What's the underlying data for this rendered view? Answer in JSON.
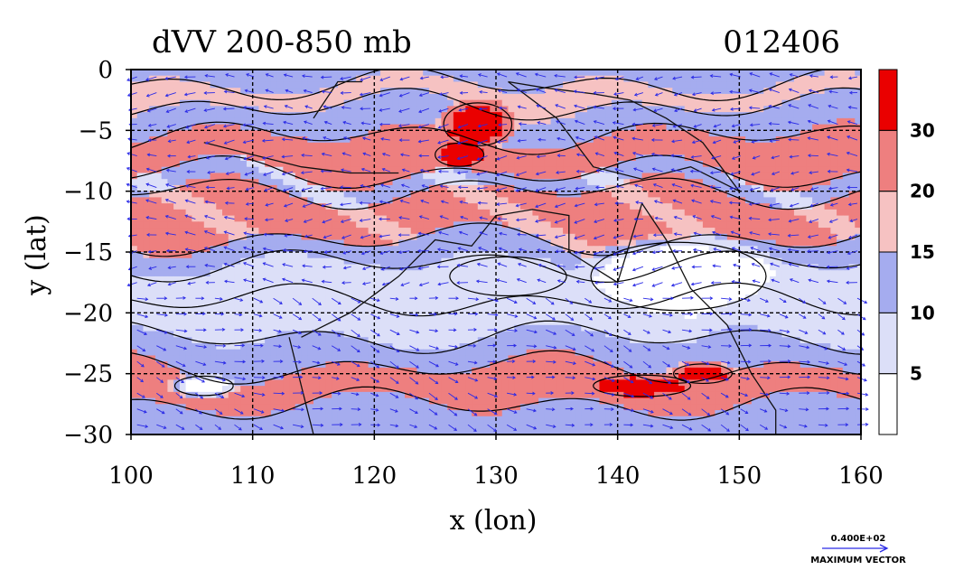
{
  "chart_data": {
    "type": "heatmap",
    "title": "dVV 200-850 mb",
    "date_label": "012406",
    "xlabel": "x (lon)",
    "ylabel": "y (lat)",
    "xlim": [
      100,
      160
    ],
    "ylim": [
      -30,
      0
    ],
    "x_ticks": [
      "100",
      "110",
      "120",
      "130",
      "140",
      "150",
      "160"
    ],
    "y_ticks": [
      "0",
      "−5",
      "−10",
      "−15",
      "−20",
      "−25",
      "−30"
    ],
    "grid": true,
    "colorbar": {
      "levels": [
        0,
        5,
        10,
        15,
        20,
        30,
        35
      ],
      "tick_labels": [
        "5",
        "10",
        "15",
        "20",
        "30"
      ],
      "colors": [
        "#ffffff",
        "#dcdff8",
        "#a5acef",
        "#f6c2c2",
        "#ee7f7f",
        "#ea0000"
      ]
    },
    "max_vector_value": "0.400E+02",
    "max_vector_label": "MAXIMUM VECTOR",
    "shear_bands": [
      {
        "lat_top": 0,
        "lat_bottom": -1.2,
        "value": 12
      },
      {
        "lat_top": -1.2,
        "lat_bottom": -3,
        "value": 17
      },
      {
        "lat_top": -3,
        "lat_bottom": -5.5,
        "value": 13
      },
      {
        "lat_top": -5.5,
        "lat_bottom": -8.5,
        "value": 22
      },
      {
        "lat_top": -8.5,
        "lat_bottom": -10,
        "value": 11
      },
      {
        "lat_top": -10,
        "lat_bottom": -14,
        "value": 21
      },
      {
        "lat_top": -14,
        "lat_bottom": -16,
        "value": 12
      },
      {
        "lat_top": -16,
        "lat_bottom": -19,
        "value": 8
      },
      {
        "lat_top": -19,
        "lat_bottom": -22,
        "value": 7
      },
      {
        "lat_top": -22,
        "lat_bottom": -24.5,
        "value": 12
      },
      {
        "lat_top": -24.5,
        "lat_bottom": -27.5,
        "value": 22
      },
      {
        "lat_top": -27.5,
        "lat_bottom": -30,
        "value": 13
      }
    ],
    "shear_patches": [
      {
        "lon": 128.5,
        "lat": -4.5,
        "rlon": 3.5,
        "rlat": 2.2,
        "value": 33
      },
      {
        "lon": 127,
        "lat": -7,
        "rlon": 2.5,
        "rlat": 1.2,
        "value": 33
      },
      {
        "lon": 142,
        "lat": -26,
        "rlon": 5,
        "rlat": 1.1,
        "value": 33
      },
      {
        "lon": 147,
        "lat": -25,
        "rlon": 3,
        "rlat": 1.0,
        "value": 33
      },
      {
        "lon": 145,
        "lat": -17,
        "rlon": 9,
        "rlat": 3.5,
        "value": 3
      },
      {
        "lon": 131,
        "lat": -17,
        "rlon": 6,
        "rlat": 2,
        "value": 7
      },
      {
        "lon": 106,
        "lat": -26,
        "rlon": 3,
        "rlat": 1,
        "value": 3
      }
    ]
  }
}
